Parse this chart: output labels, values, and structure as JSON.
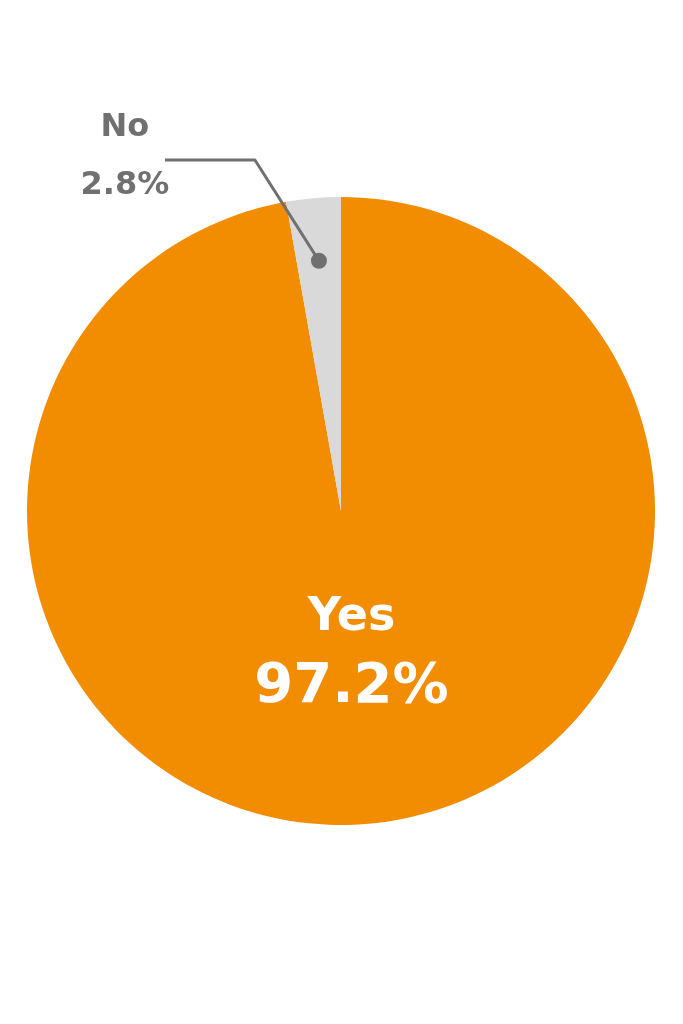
{
  "chart_data": {
    "type": "pie",
    "categories": [
      "Yes",
      "No"
    ],
    "values": [
      97.2,
      2.8
    ],
    "colors": [
      "#f28c00",
      "#d9d9d9"
    ],
    "value_labels": [
      "97.2%",
      "2.8%"
    ]
  }
}
